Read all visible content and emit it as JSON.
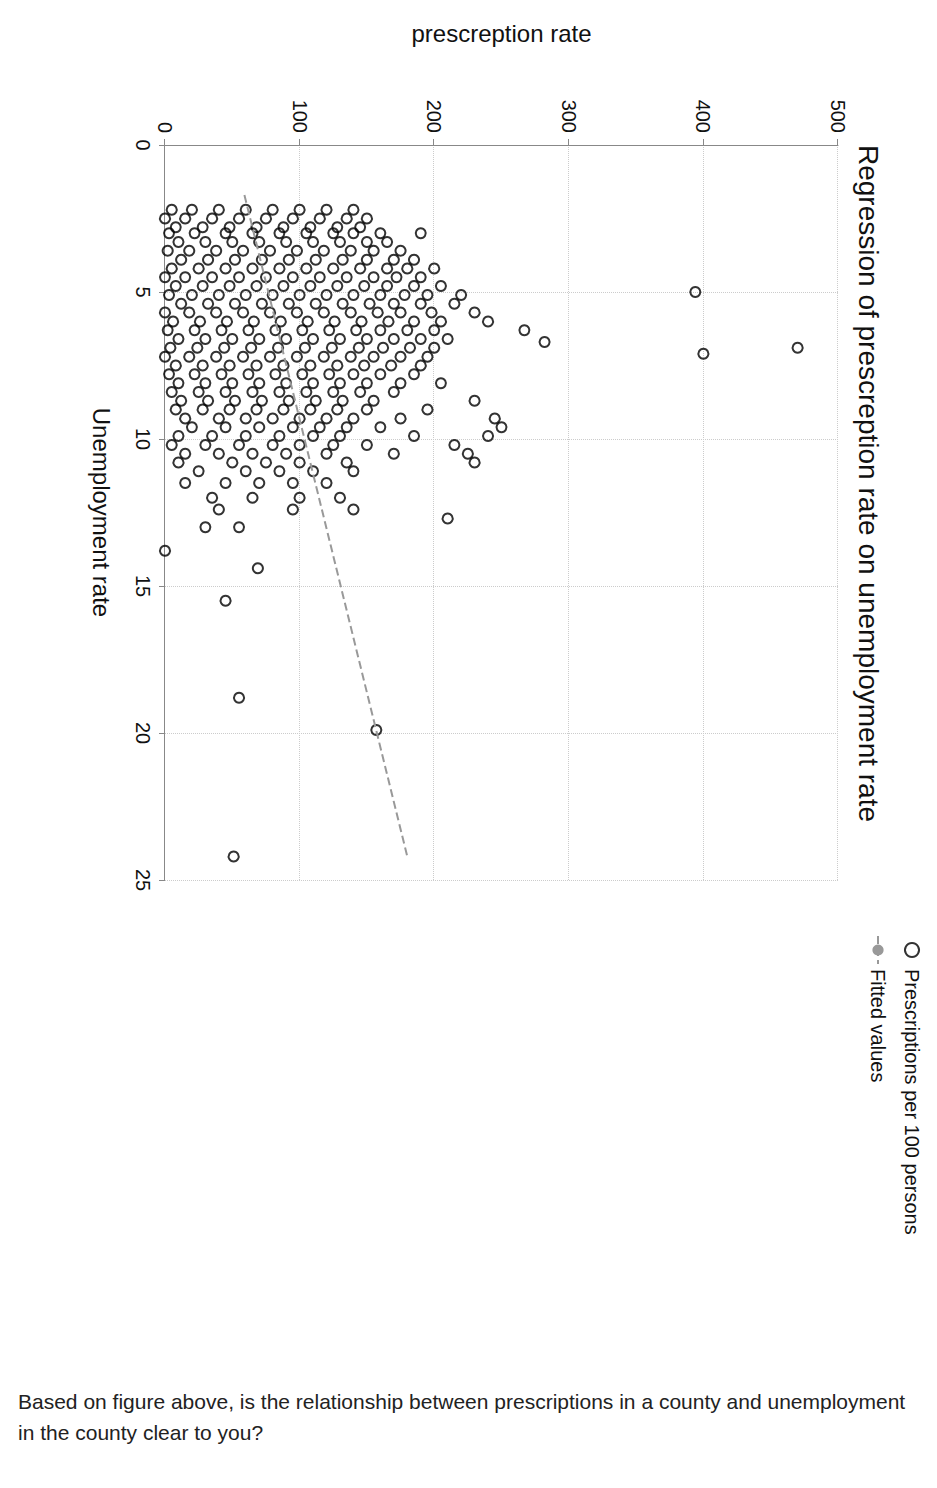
{
  "chart_data": {
    "type": "scatter",
    "title": "Regression of prescreption rate on unemployment rate",
    "x_label": "Unemployment rate",
    "y_label": "prescreption rate",
    "xlim": [
      0,
      25
    ],
    "xticks": [
      0,
      5,
      10,
      15,
      20,
      25
    ],
    "ylim": [
      0,
      500
    ],
    "yticks": [
      0,
      100,
      200,
      300,
      400,
      500
    ],
    "grid": true,
    "legend": "right",
    "series": [
      {
        "name": "Prescriptions per 100 persons",
        "type": "scatter",
        "color": "#000000",
        "marker": "circle",
        "x": [
          2.2,
          2.2,
          2.2,
          2.2,
          2.2,
          2.2,
          2.2,
          2.2,
          2.5,
          2.5,
          2.5,
          2.5,
          2.5,
          2.5,
          2.5,
          2.5,
          2.5,
          2.8,
          2.8,
          2.8,
          2.8,
          2.8,
          2.8,
          2.8,
          2.8,
          3.0,
          3.0,
          3.0,
          3.0,
          3.0,
          3.0,
          3.0,
          3.0,
          3.0,
          3.0,
          3.3,
          3.3,
          3.3,
          3.3,
          3.3,
          3.3,
          3.3,
          3.3,
          3.3,
          3.6,
          3.6,
          3.6,
          3.6,
          3.6,
          3.6,
          3.6,
          3.6,
          3.6,
          3.6,
          3.9,
          3.9,
          3.9,
          3.9,
          3.9,
          3.9,
          3.9,
          3.9,
          3.9,
          3.9,
          4.2,
          4.2,
          4.2,
          4.2,
          4.2,
          4.2,
          4.2,
          4.2,
          4.2,
          4.2,
          4.2,
          4.5,
          4.5,
          4.5,
          4.5,
          4.5,
          4.5,
          4.5,
          4.5,
          4.5,
          4.5,
          4.5,
          4.8,
          4.8,
          4.8,
          4.8,
          4.8,
          4.8,
          4.8,
          4.8,
          4.8,
          4.8,
          4.8,
          5.1,
          5.1,
          5.1,
          5.1,
          5.1,
          5.1,
          5.1,
          5.1,
          5.1,
          5.1,
          5.1,
          5.1,
          5.4,
          5.4,
          5.4,
          5.4,
          5.4,
          5.4,
          5.4,
          5.4,
          5.4,
          5.4,
          5.4,
          5.7,
          5.7,
          5.7,
          5.7,
          5.7,
          5.7,
          5.7,
          5.7,
          5.7,
          5.7,
          5.7,
          5.7,
          6.0,
          6.0,
          6.0,
          6.0,
          6.0,
          6.0,
          6.0,
          6.0,
          6.0,
          6.0,
          6.0,
          6.0,
          6.3,
          6.3,
          6.3,
          6.3,
          6.3,
          6.3,
          6.3,
          6.3,
          6.3,
          6.3,
          6.3,
          6.6,
          6.6,
          6.6,
          6.6,
          6.6,
          6.6,
          6.6,
          6.6,
          6.6,
          6.6,
          6.6,
          6.9,
          6.9,
          6.9,
          6.9,
          6.9,
          6.9,
          6.9,
          6.9,
          6.9,
          6.9,
          6.9,
          7.2,
          7.2,
          7.2,
          7.2,
          7.2,
          7.2,
          7.2,
          7.2,
          7.2,
          7.2,
          7.2,
          7.5,
          7.5,
          7.5,
          7.5,
          7.5,
          7.5,
          7.5,
          7.5,
          7.5,
          7.5,
          7.8,
          7.8,
          7.8,
          7.8,
          7.8,
          7.8,
          7.8,
          7.8,
          7.8,
          7.8,
          8.1,
          8.1,
          8.1,
          8.1,
          8.1,
          8.1,
          8.1,
          8.1,
          8.1,
          8.1,
          8.4,
          8.4,
          8.4,
          8.4,
          8.4,
          8.4,
          8.4,
          8.4,
          8.4,
          8.7,
          8.7,
          8.7,
          8.7,
          8.7,
          8.7,
          8.7,
          8.7,
          8.7,
          9.0,
          9.0,
          9.0,
          9.0,
          9.0,
          9.0,
          9.0,
          9.0,
          9.0,
          9.3,
          9.3,
          9.3,
          9.3,
          9.3,
          9.3,
          9.3,
          9.3,
          9.3,
          9.6,
          9.6,
          9.6,
          9.6,
          9.6,
          9.6,
          9.6,
          9.6,
          9.9,
          9.9,
          9.9,
          9.9,
          9.9,
          9.9,
          9.9,
          9.9,
          10.2,
          10.2,
          10.2,
          10.2,
          10.2,
          10.2,
          10.2,
          10.2,
          10.5,
          10.5,
          10.5,
          10.5,
          10.5,
          10.5,
          10.5,
          10.8,
          10.8,
          10.8,
          10.8,
          10.8,
          10.8,
          11.1,
          11.1,
          11.1,
          11.1,
          11.1,
          11.5,
          11.5,
          11.5,
          11.5,
          11.5,
          12.0,
          12.0,
          12.0,
          12.0,
          12.4,
          12.4,
          12.4,
          13.0,
          13.0,
          5.0,
          7.1,
          6.9,
          6.3,
          6.7,
          12.7,
          13.8,
          15.5,
          14.4,
          18.8,
          19.9,
          24.2
        ],
        "values": [
          5,
          20,
          40,
          60,
          80,
          100,
          120,
          140,
          0,
          15,
          35,
          55,
          75,
          95,
          115,
          135,
          150,
          8,
          28,
          48,
          68,
          88,
          108,
          128,
          145,
          3,
          22,
          45,
          65,
          85,
          105,
          125,
          140,
          160,
          190,
          10,
          30,
          50,
          70,
          90,
          110,
          130,
          150,
          165,
          2,
          18,
          38,
          58,
          78,
          98,
          118,
          138,
          155,
          175,
          12,
          32,
          52,
          72,
          92,
          112,
          132,
          150,
          170,
          185,
          5,
          25,
          45,
          65,
          85,
          105,
          125,
          145,
          165,
          180,
          200,
          0,
          15,
          35,
          55,
          75,
          95,
          115,
          135,
          155,
          172,
          190,
          8,
          28,
          48,
          68,
          88,
          108,
          128,
          148,
          165,
          185,
          205,
          3,
          20,
          40,
          60,
          80,
          100,
          120,
          140,
          160,
          178,
          195,
          220,
          12,
          32,
          52,
          72,
          92,
          112,
          132,
          152,
          170,
          190,
          215,
          0,
          18,
          38,
          58,
          78,
          98,
          118,
          138,
          158,
          175,
          198,
          230,
          6,
          26,
          46,
          66,
          86,
          106,
          126,
          146,
          166,
          185,
          205,
          240,
          2,
          22,
          42,
          62,
          82,
          102,
          122,
          142,
          160,
          180,
          200,
          10,
          30,
          50,
          70,
          90,
          110,
          130,
          150,
          170,
          190,
          210,
          4,
          24,
          44,
          64,
          84,
          104,
          124,
          144,
          162,
          182,
          200,
          0,
          18,
          38,
          58,
          78,
          98,
          118,
          138,
          155,
          175,
          195,
          8,
          28,
          48,
          68,
          88,
          108,
          128,
          148,
          168,
          190,
          3,
          22,
          42,
          62,
          82,
          102,
          122,
          140,
          160,
          185,
          10,
          30,
          50,
          70,
          90,
          110,
          130,
          150,
          175,
          205,
          5,
          25,
          45,
          65,
          85,
          105,
          125,
          145,
          170,
          12,
          32,
          52,
          72,
          92,
          112,
          132,
          155,
          230,
          8,
          28,
          48,
          68,
          88,
          108,
          128,
          150,
          195,
          15,
          40,
          60,
          80,
          100,
          120,
          140,
          175,
          245,
          20,
          45,
          70,
          95,
          115,
          135,
          160,
          250,
          10,
          35,
          60,
          85,
          110,
          130,
          185,
          240,
          5,
          30,
          55,
          80,
          100,
          125,
          150,
          215,
          15,
          40,
          65,
          90,
          120,
          170,
          225,
          10,
          50,
          75,
          100,
          135,
          230,
          25,
          60,
          85,
          110,
          140,
          15,
          45,
          70,
          95,
          120,
          35,
          65,
          100,
          130,
          40,
          95,
          140,
          30,
          55,
          394,
          400,
          470,
          267,
          282,
          210,
          0,
          45,
          69,
          55,
          157,
          51
        ]
      },
      {
        "name": "Fitted values",
        "type": "line",
        "color": "#999999",
        "line_style": "dashed",
        "x": [
          1.7,
          24.2
        ],
        "values": [
          59,
          180
        ]
      }
    ]
  },
  "caption": "Based on figure above, is the relationship between prescriptions in a county and unemployment in the county clear to you?"
}
